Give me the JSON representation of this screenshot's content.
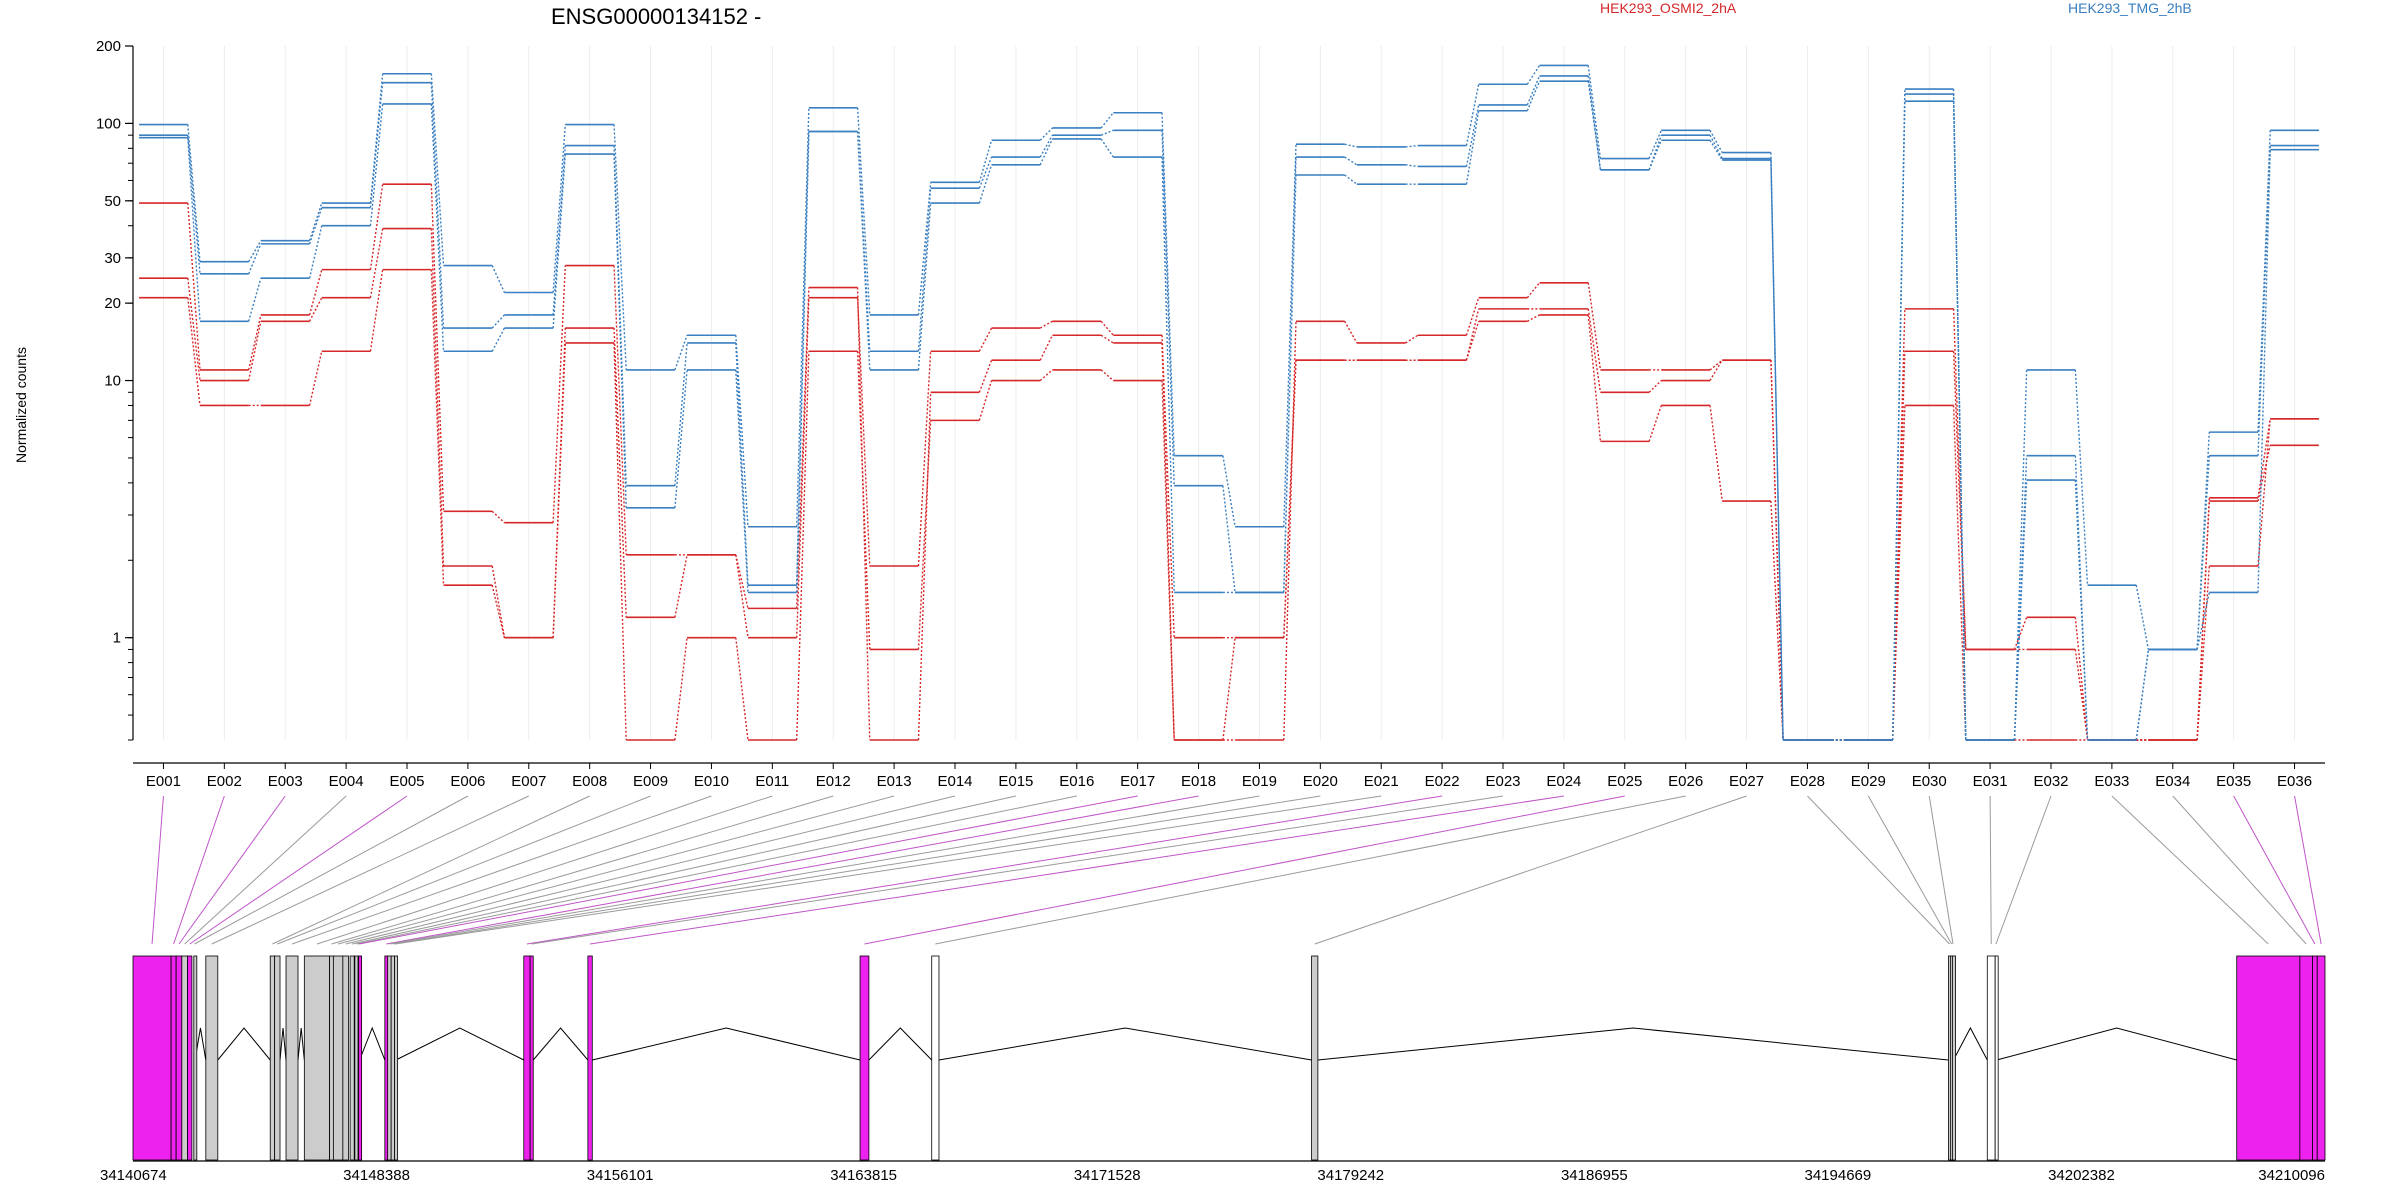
{
  "chart_data": {
    "type": "line",
    "title": "ENSG00000134152 -",
    "ylabel": "Normalized counts",
    "yscale": "log",
    "ylim": [
      0.4,
      200
    ],
    "y_ticks": [
      1,
      10,
      20,
      30,
      50,
      100,
      200
    ],
    "grid": "vertical",
    "legend_placement": "top-right",
    "legend": [
      {
        "name": "HEK293_OSMI2_2hA",
        "color": "#d62728"
      },
      {
        "name": "HEK293_TMG_2hB",
        "color": "#3a7fc0"
      }
    ],
    "categories": [
      "E001",
      "E002",
      "E003",
      "E004",
      "E005",
      "E006",
      "E007",
      "E008",
      "E009",
      "E010",
      "E011",
      "E012",
      "E013",
      "E014",
      "E015",
      "E016",
      "E017",
      "E018",
      "E019",
      "E020",
      "E021",
      "E022",
      "E023",
      "E024",
      "E025",
      "E026",
      "E027",
      "E028",
      "E029",
      "E030",
      "E031",
      "E032",
      "E033",
      "E034",
      "E035",
      "E036"
    ],
    "series": [
      {
        "group": "HEK293_OSMI2_2hA",
        "color": "#d62728",
        "values": [
          49,
          11,
          18,
          27,
          58,
          3.1,
          2.8,
          28,
          2.1,
          2.1,
          1.3,
          23,
          0.4,
          9,
          12,
          15,
          14,
          0.4,
          0.4,
          17,
          14,
          15,
          21,
          24,
          11,
          11,
          12,
          0.4,
          0.4,
          19,
          0.9,
          1.2,
          0.4,
          0.4,
          1.9,
          7.1
        ]
      },
      {
        "group": "HEK293_OSMI2_2hA",
        "color": "#d62728",
        "values": [
          25,
          10,
          17,
          21,
          39,
          1.9,
          1.0,
          16,
          1.2,
          2.1,
          1.0,
          21,
          1.9,
          13,
          16,
          17,
          15,
          1.0,
          1.0,
          12,
          12,
          12,
          19,
          19,
          9,
          10,
          12,
          0.4,
          0.4,
          13,
          0.9,
          0.9,
          0.4,
          0.4,
          3.5,
          7.1
        ]
      },
      {
        "group": "HEK293_OSMI2_2hA",
        "color": "#d62728",
        "values": [
          21,
          8,
          8,
          13,
          27,
          1.6,
          1.0,
          14,
          0.4,
          1.0,
          0.4,
          13,
          0.9,
          7,
          10,
          11,
          10,
          0.4,
          1.0,
          12,
          12,
          12,
          17,
          18,
          5.8,
          8,
          3.4,
          0.4,
          0.4,
          8,
          0.4,
          0.4,
          0.4,
          0.4,
          3.4,
          5.6
        ]
      },
      {
        "group": "HEK293_TMG_2hB",
        "color": "#3a7fc0",
        "values": [
          99,
          29,
          35,
          49,
          156,
          28,
          22,
          99,
          11,
          15,
          2.7,
          115,
          18,
          59,
          86,
          96,
          110,
          5.1,
          2.7,
          83,
          81,
          82,
          142,
          168,
          73,
          94,
          77,
          0.4,
          0.4,
          136,
          0.4,
          11,
          1.6,
          0.9,
          6.3,
          94
        ]
      },
      {
        "group": "HEK293_TMG_2hB",
        "color": "#3a7fc0",
        "values": [
          90,
          26,
          34,
          47,
          144,
          16,
          18,
          82,
          3.9,
          14,
          1.6,
          93,
          13,
          56,
          74,
          90,
          94,
          3.9,
          1.5,
          74,
          69,
          68,
          118,
          153,
          66,
          90,
          73,
          0.4,
          0.4,
          130,
          0.4,
          5.1,
          0.4,
          0.9,
          5.1,
          82
        ]
      },
      {
        "group": "HEK293_TMG_2hB",
        "color": "#3a7fc0",
        "values": [
          88,
          17,
          25,
          40,
          119,
          13,
          16,
          76,
          3.2,
          11,
          1.5,
          93,
          11,
          49,
          69,
          87,
          74,
          1.5,
          1.5,
          63,
          58,
          58,
          112,
          146,
          66,
          86,
          72,
          0.4,
          0.4,
          122,
          0.4,
          4.1,
          0.4,
          0.9,
          1.5,
          79
        ]
      }
    ],
    "highlighted_exons": [
      "E001",
      "E002",
      "E003",
      "E005",
      "E017",
      "E018",
      "E022",
      "E024",
      "E025",
      "E035",
      "E036"
    ],
    "gene_model": {
      "coordinate_labels": [
        "34140674",
        "34148388",
        "34156101",
        "34163815",
        "34171528",
        "34179242",
        "34186955",
        "34194669",
        "34202382",
        "34210096"
      ],
      "coordinate_range": [
        34140674,
        34210096
      ],
      "exons": [
        {
          "id": "E001",
          "start": 34140674,
          "end": 34141880,
          "color": "#ee22ee"
        },
        {
          "id": "E002",
          "start": 34141880,
          "end": 34142040,
          "color": "#ee22ee"
        },
        {
          "id": "E003",
          "start": 34142040,
          "end": 34142220,
          "color": "#ee22ee"
        },
        {
          "id": "E004",
          "start": 34142220,
          "end": 34142400,
          "color": "#cccccc"
        },
        {
          "id": "E005",
          "start": 34142400,
          "end": 34142540,
          "color": "#ee22ee"
        },
        {
          "id": "E006",
          "start": 34142600,
          "end": 34142640,
          "color": "#cccccc"
        },
        {
          "id": "E007",
          "start": 34142980,
          "end": 34143360,
          "color": "#cccccc"
        },
        {
          "id": "E008",
          "start": 34145020,
          "end": 34145160,
          "color": "#cccccc"
        },
        {
          "id": "E009",
          "start": 34145160,
          "end": 34145330,
          "color": "#cccccc"
        },
        {
          "id": "E010",
          "start": 34145520,
          "end": 34145900,
          "color": "#cccccc"
        },
        {
          "id": "E011",
          "start": 34146100,
          "end": 34146900,
          "color": "#cccccc"
        },
        {
          "id": "E012",
          "start": 34146900,
          "end": 34147020,
          "color": "#cccccc"
        },
        {
          "id": "E013",
          "start": 34147020,
          "end": 34147320,
          "color": "#cccccc"
        },
        {
          "id": "E014",
          "start": 34147320,
          "end": 34147500,
          "color": "#cccccc"
        },
        {
          "id": "E015",
          "start": 34147550,
          "end": 34147680,
          "color": "#cccccc"
        },
        {
          "id": "E016",
          "start": 34147700,
          "end": 34147800,
          "color": "#cccccc"
        },
        {
          "id": "E017",
          "start": 34147820,
          "end": 34147850,
          "color": "#ee22ee"
        },
        {
          "id": "E018",
          "start": 34148650,
          "end": 34148740,
          "color": "#ee22ee"
        },
        {
          "id": "E019",
          "start": 34148740,
          "end": 34148850,
          "color": "#cccccc"
        },
        {
          "id": "E020",
          "start": 34148850,
          "end": 34148960,
          "color": "#cccccc"
        },
        {
          "id": "E021",
          "start": 34148960,
          "end": 34149000,
          "color": "#cccccc"
        },
        {
          "id": "E022",
          "start": 34153050,
          "end": 34153250,
          "color": "#ee22ee"
        },
        {
          "id": "E023",
          "start": 34153250,
          "end": 34153350,
          "color": "#ee22ee"
        },
        {
          "id": "E024",
          "start": 34155080,
          "end": 34155220,
          "color": "#ee22ee"
        },
        {
          "id": "E025",
          "start": 34163700,
          "end": 34163980,
          "color": "#ee22ee"
        },
        {
          "id": "E026",
          "start": 34165970,
          "end": 34166200,
          "color": "#ffffff"
        },
        {
          "id": "E027",
          "start": 34178000,
          "end": 34178200,
          "color": "#cccccc"
        },
        {
          "id": "E028",
          "start": 34198170,
          "end": 34198240,
          "color": "#cccccc"
        },
        {
          "id": "E029",
          "start": 34198240,
          "end": 34198300,
          "color": "#cccccc"
        },
        {
          "id": "E030",
          "start": 34198300,
          "end": 34198330,
          "color": "#cccccc"
        },
        {
          "id": "E031",
          "start": 34199400,
          "end": 34199650,
          "color": "#ffffff"
        },
        {
          "id": "E032",
          "start": 34199650,
          "end": 34199700,
          "color": "#ffffff"
        },
        {
          "id": "E033",
          "start": 34207300,
          "end": 34209300,
          "color": "#ee22ee"
        },
        {
          "id": "E034",
          "start": 34209300,
          "end": 34209700,
          "color": "#ee22ee"
        },
        {
          "id": "E035",
          "start": 34209700,
          "end": 34209850,
          "color": "#ee22ee"
        },
        {
          "id": "E036",
          "start": 34209850,
          "end": 34210096,
          "color": "#ee22ee"
        }
      ]
    }
  }
}
